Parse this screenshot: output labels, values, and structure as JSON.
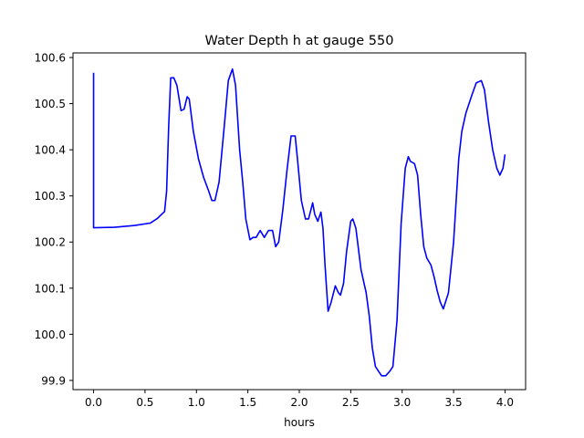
{
  "chart_data": {
    "type": "line",
    "title": "Water Depth h at gauge 550",
    "xlabel": "hours",
    "ylabel": "",
    "xlim": [
      -0.2,
      4.2
    ],
    "ylim": [
      99.88,
      100.61
    ],
    "xticks": [
      0.0,
      0.5,
      1.0,
      1.5,
      2.0,
      2.5,
      3.0,
      3.5,
      4.0
    ],
    "xtick_labels": [
      "0.0",
      "0.5",
      "1.0",
      "1.5",
      "2.0",
      "2.5",
      "3.0",
      "3.5",
      "4.0"
    ],
    "yticks": [
      99.9,
      100.0,
      100.1,
      100.2,
      100.3,
      100.4,
      100.5,
      100.6
    ],
    "ytick_labels": [
      "99.9",
      "100.0",
      "100.1",
      "100.2",
      "100.3",
      "100.4",
      "100.5",
      "100.6"
    ],
    "grid": false,
    "series": [
      {
        "color": "#0000ff",
        "x": [
          0.0,
          0.0,
          0.0,
          0.2,
          0.4,
          0.55,
          0.62,
          0.67,
          0.69,
          0.71,
          0.73,
          0.75,
          0.78,
          0.81,
          0.85,
          0.88,
          0.91,
          0.93,
          0.97,
          1.02,
          1.07,
          1.12,
          1.15,
          1.18,
          1.22,
          1.27,
          1.31,
          1.35,
          1.38,
          1.42,
          1.45,
          1.48,
          1.52,
          1.55,
          1.58,
          1.62,
          1.66,
          1.7,
          1.74,
          1.77,
          1.8,
          1.84,
          1.88,
          1.92,
          1.96,
          1.98,
          2.02,
          2.06,
          2.09,
          2.13,
          2.15,
          2.18,
          2.21,
          2.23,
          2.25,
          2.28,
          2.31,
          2.35,
          2.38,
          2.4,
          2.43,
          2.46,
          2.5,
          2.52,
          2.55,
          2.6,
          2.65,
          2.68,
          2.71,
          2.74,
          2.77,
          2.8,
          2.84,
          2.88,
          2.91,
          2.95,
          2.99,
          3.03,
          3.06,
          3.08,
          3.12,
          3.15,
          3.18,
          3.21,
          3.24,
          3.28,
          3.31,
          3.34,
          3.37,
          3.4,
          3.45,
          3.5,
          3.55,
          3.58,
          3.62,
          3.65,
          3.68,
          3.72,
          3.77,
          3.8,
          3.84,
          3.88,
          3.92,
          3.95,
          3.98,
          4.0
        ],
        "y": [
          100.567,
          100.231,
          100.231,
          100.232,
          100.236,
          100.241,
          100.251,
          100.262,
          100.266,
          100.31,
          100.45,
          100.556,
          100.556,
          100.54,
          100.485,
          100.488,
          100.515,
          100.51,
          100.44,
          100.38,
          100.34,
          100.31,
          100.29,
          100.29,
          100.33,
          100.45,
          100.55,
          100.575,
          100.54,
          100.4,
          100.33,
          100.25,
          100.205,
          100.21,
          100.21,
          100.225,
          100.21,
          100.225,
          100.225,
          100.19,
          100.2,
          100.27,
          100.355,
          100.43,
          100.43,
          100.385,
          100.29,
          100.25,
          100.25,
          100.285,
          100.26,
          100.245,
          100.265,
          100.23,
          100.15,
          100.05,
          100.07,
          100.105,
          100.09,
          100.085,
          100.11,
          100.18,
          100.245,
          100.25,
          100.23,
          100.14,
          100.09,
          100.04,
          99.97,
          99.93,
          99.92,
          99.91,
          99.91,
          99.92,
          99.93,
          100.03,
          100.24,
          100.36,
          100.385,
          100.375,
          100.37,
          100.345,
          100.26,
          100.19,
          100.165,
          100.15,
          100.125,
          100.095,
          100.07,
          100.055,
          100.09,
          100.2,
          100.38,
          100.44,
          100.48,
          100.5,
          100.52,
          100.545,
          100.55,
          100.53,
          100.46,
          100.4,
          100.36,
          100.345,
          100.36,
          100.39
        ]
      }
    ]
  }
}
